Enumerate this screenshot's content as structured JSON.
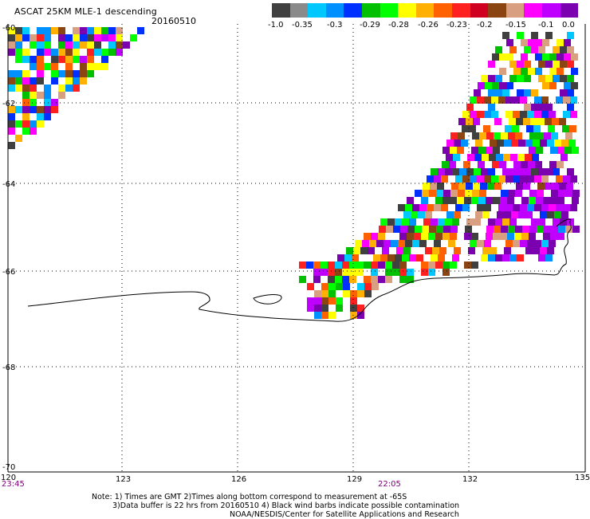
{
  "header": {
    "title": "ASCAT 25KM MLE-1 descending",
    "date": "20160510"
  },
  "colorbar": {
    "labels": [
      "-1.0",
      "-0.35",
      "-0.3",
      "-0.29",
      "-0.28",
      "-0.26",
      "-0.23",
      "-0.2",
      "-0.15",
      "-0.1",
      "0.0"
    ],
    "colors": [
      "#404040",
      "#8a8a8a",
      "#00c8ff",
      "#0090ff",
      "#0030ff",
      "#00c000",
      "#00ff00",
      "#ffff00",
      "#ffb000",
      "#ff6000",
      "#ff2020",
      "#d00020",
      "#8b4513",
      "#d8a080",
      "#ff00ff",
      "#c000ff",
      "#7a00b0"
    ]
  },
  "axes": {
    "lat_labels": [
      "-60",
      "-62",
      "-64",
      "-66",
      "-68",
      "-70"
    ],
    "lon_labels": [
      "120",
      "123",
      "126",
      "129",
      "132",
      "135"
    ]
  },
  "times": {
    "left": "23:45",
    "middle": "22:05"
  },
  "footer": {
    "line1": "Note: 1) Times are GMT 2)Times along bottom correspond to measurement at -65S",
    "line2": "3)Data buffer is 22 hrs from 20160510 4) Black wind barbs indicate possible contamination",
    "line3": "NOAA/NESDIS/Center for Satellite Applications and Research"
  }
}
